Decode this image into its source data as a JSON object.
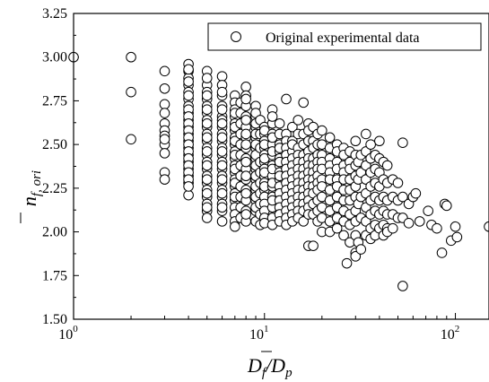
{
  "chart_data": {
    "type": "scatter",
    "title": "",
    "xscale": "log",
    "xlim": [
      1,
      150
    ],
    "ylim": [
      1.5,
      3.25
    ],
    "x_ticks": [
      {
        "value": 1,
        "base": "10",
        "exp": "0"
      },
      {
        "value": 10,
        "base": "10",
        "exp": "1"
      },
      {
        "value": 100,
        "base": "10",
        "exp": "2"
      }
    ],
    "y_ticks": [
      "1.50",
      "1.75",
      "2.00",
      "2.25",
      "2.50",
      "2.75",
      "3.00",
      "3.25"
    ],
    "xlabel": {
      "main": "D",
      "sub1": "f",
      "slash": "/D",
      "sub2": "p"
    },
    "ylabel": {
      "main": "n",
      "sub": "f, ori"
    },
    "legend": {
      "position": "top-right",
      "label": "Original experimental data"
    },
    "series": [
      {
        "name": "Original experimental data",
        "marker": "open-circle",
        "x": [
          1,
          2,
          2,
          2,
          3,
          3,
          3,
          3,
          3,
          3,
          3,
          3,
          3,
          3,
          3,
          3,
          4,
          4,
          4,
          4,
          4,
          4,
          4,
          4,
          4,
          4,
          4,
          4,
          4,
          4,
          4,
          4,
          4,
          4,
          4,
          4,
          4,
          4,
          4,
          4,
          4,
          4,
          4,
          4,
          4,
          4,
          4,
          4,
          4,
          4,
          5,
          5,
          5,
          5,
          5,
          5,
          5,
          5,
          5,
          5,
          5,
          5,
          5,
          5,
          5,
          5,
          5,
          5,
          5,
          5,
          5,
          5,
          5,
          5,
          5,
          5,
          5,
          5,
          5,
          5,
          5,
          6,
          6,
          6,
          6,
          6,
          6,
          6,
          6,
          6,
          6,
          6,
          6,
          6,
          6,
          6,
          6,
          6,
          6,
          6,
          6,
          6,
          6,
          6,
          6,
          6,
          6,
          6,
          6,
          6,
          7,
          7,
          7,
          7,
          7,
          7,
          7,
          7,
          7,
          7,
          7,
          7,
          7,
          7,
          7,
          7,
          7,
          7,
          7,
          7,
          7,
          7,
          7,
          7,
          7,
          7,
          7,
          7.5,
          7.5,
          7.5,
          7.5,
          7.5,
          7.5,
          7.5,
          7.5,
          7.5,
          7.5,
          7.5,
          7.5,
          8,
          8,
          8,
          8,
          8,
          8,
          8,
          8,
          8,
          8,
          8,
          8,
          8,
          8,
          8,
          8,
          8,
          8,
          8,
          8,
          8,
          8,
          9,
          9,
          9,
          9,
          9,
          9,
          9,
          9,
          9,
          9,
          9,
          9,
          9,
          9,
          9,
          9,
          9,
          9,
          9,
          9,
          9,
          9,
          9.5,
          9.5,
          9.5,
          9.5,
          9.5,
          9.5,
          9.5,
          9.5,
          9.5,
          9.5,
          10,
          10,
          10,
          10,
          10,
          10,
          10,
          10,
          10,
          10,
          10,
          10,
          10,
          10,
          10,
          10,
          10,
          10,
          10,
          10,
          11,
          11,
          11,
          11,
          11,
          11,
          11,
          11,
          11,
          11,
          11,
          11,
          11,
          11,
          11,
          11,
          11,
          11,
          12,
          12,
          12,
          12,
          12,
          12,
          12,
          12,
          12,
          12,
          12,
          12,
          12,
          12,
          12,
          12,
          12,
          13,
          13,
          13,
          13,
          13,
          13,
          13,
          13,
          13,
          13,
          13,
          13,
          13,
          13,
          13,
          14,
          14,
          14,
          14,
          14,
          14,
          14,
          14,
          14,
          14,
          14,
          14,
          14,
          14,
          15,
          15,
          15,
          15,
          15,
          15,
          15,
          15,
          15,
          15,
          15,
          15,
          15,
          16,
          16,
          16,
          16,
          16,
          16,
          16,
          16,
          16,
          16,
          16,
          16,
          16,
          17,
          17,
          17,
          17,
          17,
          17,
          17,
          17,
          17,
          17,
          17,
          17,
          17,
          17,
          18,
          18,
          18,
          18,
          18,
          18,
          18,
          18,
          18,
          18,
          18,
          18,
          19,
          19,
          19,
          19,
          19,
          19,
          19,
          19,
          19,
          19,
          19,
          20,
          20,
          20,
          20,
          20,
          20,
          20,
          20,
          20,
          20,
          20,
          22,
          22,
          22,
          22,
          22,
          22,
          22,
          22,
          22,
          22,
          22,
          24,
          24,
          24,
          24,
          24,
          24,
          24,
          24,
          24,
          24,
          26,
          26,
          26,
          26,
          26,
          26,
          26,
          26,
          26,
          26,
          27,
          28,
          28,
          28,
          28,
          28,
          28,
          28,
          28,
          28,
          30,
          30,
          30,
          30,
          30,
          30,
          30,
          30,
          30,
          30,
          30,
          31,
          31,
          31,
          31,
          32,
          32,
          32,
          32,
          32,
          34,
          34,
          34,
          34,
          34,
          34,
          34,
          34,
          36,
          36,
          36,
          36,
          36,
          36,
          36,
          36,
          38,
          38,
          38,
          38,
          38,
          38,
          38,
          40,
          40,
          40,
          40,
          40,
          40,
          40,
          42,
          42,
          42,
          42,
          42,
          42,
          44,
          44,
          44,
          44,
          44,
          44,
          47,
          47,
          47,
          47,
          50,
          50,
          50,
          53,
          53,
          53,
          53,
          57,
          57,
          60,
          62,
          65,
          72,
          75,
          80,
          85,
          88,
          90,
          95,
          100,
          102,
          150
        ],
        "y": [
          3.0,
          3.0,
          2.8,
          2.53,
          2.92,
          2.82,
          2.73,
          2.68,
          2.62,
          2.58,
          2.55,
          2.5,
          2.45,
          2.34,
          2.3,
          2.53,
          2.96,
          2.92,
          2.88,
          2.84,
          2.8,
          2.76,
          2.72,
          2.68,
          2.64,
          2.6,
          2.56,
          2.52,
          2.48,
          2.44,
          2.4,
          2.36,
          2.32,
          2.28,
          2.21,
          2.93,
          2.86,
          2.78,
          2.7,
          2.66,
          2.62,
          2.58,
          2.54,
          2.5,
          2.46,
          2.42,
          2.38,
          2.34,
          2.3,
          2.26,
          2.92,
          2.84,
          2.8,
          2.76,
          2.72,
          2.68,
          2.64,
          2.6,
          2.56,
          2.52,
          2.48,
          2.44,
          2.4,
          2.36,
          2.32,
          2.28,
          2.24,
          2.2,
          2.16,
          2.12,
          2.88,
          2.78,
          2.7,
          2.62,
          2.54,
          2.46,
          2.38,
          2.3,
          2.22,
          2.14,
          2.08,
          2.89,
          2.84,
          2.78,
          2.72,
          2.66,
          2.64,
          2.6,
          2.56,
          2.52,
          2.48,
          2.44,
          2.4,
          2.36,
          2.32,
          2.28,
          2.24,
          2.2,
          2.16,
          2.12,
          2.06,
          2.8,
          2.7,
          2.62,
          2.54,
          2.46,
          2.38,
          2.3,
          2.22,
          2.14,
          2.78,
          2.74,
          2.7,
          2.66,
          2.62,
          2.58,
          2.54,
          2.5,
          2.46,
          2.42,
          2.38,
          2.34,
          2.3,
          2.26,
          2.22,
          2.18,
          2.14,
          2.1,
          2.06,
          2.03,
          2.68,
          2.6,
          2.52,
          2.44,
          2.36,
          2.28,
          2.2,
          2.74,
          2.68,
          2.62,
          2.56,
          2.5,
          2.44,
          2.38,
          2.32,
          2.26,
          2.2,
          2.14,
          2.08,
          2.83,
          2.78,
          2.72,
          2.66,
          2.6,
          2.54,
          2.48,
          2.42,
          2.36,
          2.3,
          2.24,
          2.18,
          2.12,
          2.06,
          2.76,
          2.64,
          2.56,
          2.5,
          2.4,
          2.32,
          2.22,
          2.1,
          2.72,
          2.66,
          2.6,
          2.54,
          2.48,
          2.42,
          2.36,
          2.3,
          2.24,
          2.18,
          2.12,
          2.06,
          2.68,
          2.62,
          2.56,
          2.5,
          2.44,
          2.38,
          2.32,
          2.26,
          2.2,
          2.14,
          2.64,
          2.56,
          2.48,
          2.4,
          2.34,
          2.28,
          2.22,
          2.16,
          2.1,
          2.04,
          2.6,
          2.56,
          2.52,
          2.48,
          2.44,
          2.4,
          2.36,
          2.32,
          2.28,
          2.24,
          2.2,
          2.16,
          2.12,
          2.08,
          2.05,
          2.58,
          2.5,
          2.42,
          2.34,
          2.26,
          2.7,
          2.62,
          2.56,
          2.5,
          2.44,
          2.38,
          2.32,
          2.26,
          2.2,
          2.14,
          2.08,
          2.04,
          2.66,
          2.54,
          2.46,
          2.36,
          2.28,
          2.18,
          2.62,
          2.56,
          2.5,
          2.46,
          2.42,
          2.38,
          2.34,
          2.3,
          2.26,
          2.22,
          2.18,
          2.14,
          2.1,
          2.06,
          2.48,
          2.4,
          2.32,
          2.76,
          2.56,
          2.52,
          2.48,
          2.44,
          2.4,
          2.36,
          2.32,
          2.28,
          2.24,
          2.2,
          2.16,
          2.12,
          2.08,
          2.04,
          2.6,
          2.52,
          2.46,
          2.42,
          2.38,
          2.34,
          2.3,
          2.26,
          2.22,
          2.18,
          2.14,
          2.1,
          2.06,
          2.5,
          2.64,
          2.56,
          2.48,
          2.44,
          2.4,
          2.36,
          2.32,
          2.28,
          2.24,
          2.2,
          2.16,
          2.12,
          2.08,
          2.74,
          2.56,
          2.5,
          2.44,
          2.4,
          2.36,
          2.32,
          2.28,
          2.24,
          2.2,
          2.16,
          2.12,
          2.06,
          2.62,
          2.52,
          2.46,
          2.42,
          2.38,
          2.34,
          2.3,
          2.26,
          2.22,
          2.18,
          2.14,
          2.1,
          1.92,
          2.58,
          2.6,
          2.52,
          2.48,
          2.42,
          2.38,
          2.34,
          2.3,
          2.26,
          2.22,
          2.16,
          2.1,
          1.92,
          2.56,
          2.5,
          2.44,
          2.4,
          2.36,
          2.32,
          2.28,
          2.24,
          2.18,
          2.12,
          2.06,
          2.58,
          2.5,
          2.44,
          2.4,
          2.36,
          2.3,
          2.26,
          2.2,
          2.14,
          2.08,
          2.0,
          2.54,
          2.48,
          2.42,
          2.38,
          2.34,
          2.3,
          2.24,
          2.18,
          2.12,
          2.06,
          2.0,
          2.5,
          2.46,
          2.4,
          2.36,
          2.3,
          2.26,
          2.2,
          2.14,
          2.08,
          2.02,
          2.48,
          2.44,
          2.38,
          2.34,
          2.3,
          2.24,
          2.18,
          2.12,
          2.06,
          1.98,
          1.82,
          2.46,
          2.4,
          2.36,
          2.3,
          2.24,
          2.18,
          2.1,
          2.04,
          1.94,
          2.52,
          2.44,
          2.38,
          2.32,
          2.26,
          2.2,
          2.12,
          2.06,
          1.98,
          1.88,
          1.86,
          2.4,
          2.3,
          2.16,
          1.94,
          2.44,
          2.34,
          2.2,
          2.08,
          1.9,
          2.46,
          2.38,
          2.3,
          2.22,
          2.14,
          2.06,
          1.98,
          2.56,
          2.42,
          2.34,
          2.26,
          2.18,
          2.1,
          2.02,
          1.96,
          2.5,
          2.44,
          2.36,
          2.28,
          2.2,
          2.12,
          2.04,
          1.98,
          2.42,
          2.34,
          2.26,
          2.18,
          2.1,
          2.02,
          2.52,
          2.4,
          2.3,
          2.2,
          2.12,
          2.04,
          1.98,
          2.38,
          2.28,
          2.18,
          2.1,
          2.02,
          2.0,
          2.3,
          2.2,
          2.1,
          2.02,
          2.28,
          2.18,
          2.08,
          2.51,
          2.2,
          2.08,
          1.69,
          2.16,
          2.05,
          2.2,
          2.22,
          2.06,
          2.12,
          2.04,
          2.02,
          1.88,
          2.16,
          2.15,
          1.95,
          2.03,
          1.97,
          2.03
        ]
      }
    ]
  }
}
